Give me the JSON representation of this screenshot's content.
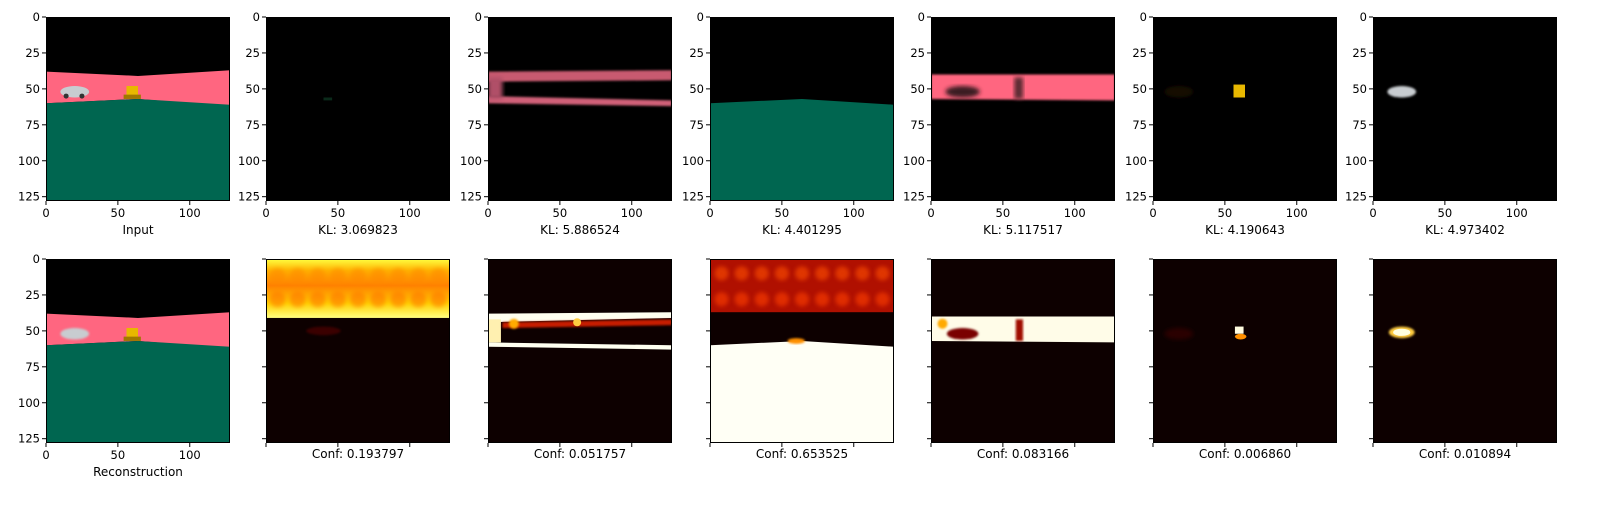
{
  "figure": {
    "panels": [
      {
        "row": 0,
        "col": 0,
        "kind": "input",
        "caption": "Input",
        "show_x": true,
        "show_y": true
      },
      {
        "row": 0,
        "col": 1,
        "kind": "mask",
        "caption": "KL: 3.069823",
        "show_x": true,
        "show_y": true
      },
      {
        "row": 0,
        "col": 2,
        "kind": "mask",
        "caption": "KL: 5.886524",
        "show_x": true,
        "show_y": true
      },
      {
        "row": 0,
        "col": 3,
        "kind": "mask",
        "caption": "KL: 4.401295",
        "show_x": true,
        "show_y": true
      },
      {
        "row": 0,
        "col": 4,
        "kind": "mask",
        "caption": "KL: 5.117517",
        "show_x": true,
        "show_y": true
      },
      {
        "row": 0,
        "col": 5,
        "kind": "mask",
        "caption": "KL: 4.190643",
        "show_x": true,
        "show_y": true
      },
      {
        "row": 0,
        "col": 6,
        "kind": "mask",
        "caption": "KL: 4.973402",
        "show_x": true,
        "show_y": true
      },
      {
        "row": 1,
        "col": 0,
        "kind": "reconstruction",
        "caption": "Reconstruction",
        "show_x": true,
        "show_y": true
      },
      {
        "row": 1,
        "col": 1,
        "kind": "confidence",
        "caption": "Conf: 0.193797",
        "show_x": false,
        "show_y": false
      },
      {
        "row": 1,
        "col": 2,
        "kind": "confidence",
        "caption": "Conf: 0.051757",
        "show_x": false,
        "show_y": false
      },
      {
        "row": 1,
        "col": 3,
        "kind": "confidence",
        "caption": "Conf: 0.653525",
        "show_x": false,
        "show_y": false
      },
      {
        "row": 1,
        "col": 4,
        "kind": "confidence",
        "caption": "Conf: 0.083166",
        "show_x": false,
        "show_y": false
      },
      {
        "row": 1,
        "col": 5,
        "kind": "confidence",
        "caption": "Conf: 0.006860",
        "show_x": false,
        "show_y": false
      },
      {
        "row": 1,
        "col": 6,
        "kind": "confidence",
        "caption": "Conf: 0.010894",
        "show_x": false,
        "show_y": false
      }
    ]
  },
  "chart_data": {
    "type": "heatmap",
    "image_extent": [
      0,
      128
    ],
    "x_ticks": [
      0,
      50,
      100
    ],
    "y_ticks": [
      0,
      25,
      50,
      75,
      100,
      125
    ],
    "colormap": "hot",
    "scene_colors": {
      "sky": "#000000",
      "wall": "#ff6680",
      "floor": "#006650",
      "object": "#e8b800",
      "car": "#c8ccd0"
    },
    "kl_values": [
      3.069823,
      5.886524,
      4.401295,
      5.117517,
      4.190643,
      4.973402
    ],
    "confidence_values": [
      0.193797,
      0.051757,
      0.653525,
      0.083166,
      0.00686,
      0.010894
    ]
  }
}
